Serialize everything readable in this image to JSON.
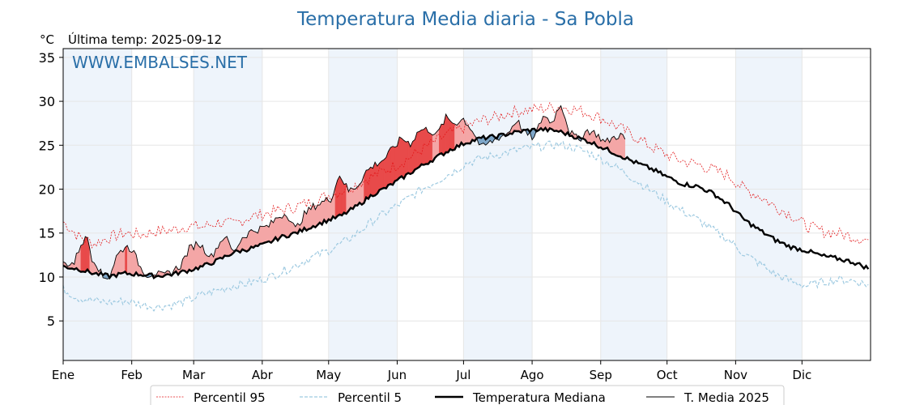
{
  "chart_data": {
    "type": "line",
    "title": "Temperatura Media diaria - Sa Pobla",
    "unit_label": "°C",
    "subtitle": "Última temp: 2025-09-12",
    "watermark": "WWW.EMBALSES.NET",
    "ylim": [
      0.5,
      36
    ],
    "yticks": [
      5,
      10,
      15,
      20,
      25,
      30,
      35
    ],
    "months": [
      "Ene",
      "Feb",
      "Mar",
      "Abr",
      "May",
      "Jun",
      "Jul",
      "Ago",
      "Sep",
      "Oct",
      "Nov",
      "Dic"
    ],
    "month_start_days": [
      1,
      32,
      60,
      91,
      121,
      152,
      182,
      213,
      244,
      274,
      305,
      335
    ],
    "xlim": [
      1,
      366
    ],
    "grid": true,
    "legend_position": "bottom-center",
    "colors": {
      "title": "#2a6fa8",
      "p95": "#e31a1c",
      "p5": "#9ecae1",
      "median": "#000000",
      "current": "#000000",
      "above_fill": "#f4a6a6",
      "above_fill_strong": "#e84a4a",
      "below_fill": "#7ea6c8",
      "below_fill_strong": "#1f5a93",
      "band": "#eef4fb"
    },
    "series": [
      {
        "name": "Percentil 95",
        "days": [
          1,
          8,
          15,
          22,
          29,
          36,
          43,
          50,
          57,
          64,
          71,
          78,
          85,
          92,
          99,
          106,
          113,
          120,
          127,
          134,
          141,
          148,
          155,
          162,
          169,
          176,
          183,
          190,
          197,
          204,
          211,
          218,
          225,
          232,
          239,
          246,
          253,
          260,
          267,
          274,
          281,
          288,
          295,
          302,
          309,
          316,
          323,
          330,
          337,
          344,
          351,
          358,
          365
        ],
        "values": [
          16.3,
          14.6,
          13.8,
          14.5,
          15.0,
          14.8,
          15.2,
          15.3,
          15.8,
          15.7,
          16.2,
          16.0,
          16.8,
          17.2,
          17.6,
          18.0,
          18.5,
          19.2,
          19.8,
          20.6,
          21.5,
          22.3,
          23.2,
          24.3,
          25.4,
          26.4,
          27.1,
          27.8,
          28.2,
          28.8,
          29.0,
          29.2,
          29.4,
          29.1,
          28.6,
          27.9,
          26.9,
          25.9,
          24.8,
          23.9,
          23.2,
          22.8,
          22.2,
          21.5,
          20.0,
          19.2,
          18.0,
          17.1,
          15.8,
          15.2,
          15.0,
          14.6,
          14.2
        ]
      },
      {
        "name": "Percentil 5",
        "days": [
          1,
          8,
          15,
          22,
          29,
          36,
          43,
          50,
          57,
          64,
          71,
          78,
          85,
          92,
          99,
          106,
          113,
          120,
          127,
          134,
          141,
          148,
          155,
          162,
          169,
          176,
          183,
          190,
          197,
          204,
          211,
          218,
          225,
          232,
          239,
          246,
          253,
          260,
          267,
          274,
          281,
          288,
          295,
          302,
          309,
          316,
          323,
          330,
          337,
          344,
          351,
          358,
          365
        ],
        "values": [
          8.6,
          7.6,
          7.3,
          7.1,
          7.3,
          6.9,
          6.6,
          6.8,
          7.3,
          8.0,
          8.5,
          9.0,
          9.3,
          9.8,
          10.5,
          11.3,
          12.2,
          12.9,
          13.8,
          15.0,
          16.4,
          17.5,
          18.6,
          19.8,
          20.8,
          21.8,
          22.9,
          23.5,
          23.9,
          24.3,
          24.7,
          24.9,
          25.1,
          24.7,
          24.1,
          23.2,
          22.2,
          21.0,
          19.8,
          18.6,
          17.5,
          16.5,
          15.3,
          14.2,
          12.6,
          11.5,
          10.3,
          9.5,
          9.0,
          9.4,
          9.7,
          9.6,
          9.1
        ]
      },
      {
        "name": "Temperatura Mediana",
        "days": [
          1,
          8,
          15,
          22,
          29,
          36,
          43,
          50,
          57,
          64,
          71,
          78,
          85,
          92,
          99,
          106,
          113,
          120,
          127,
          134,
          141,
          148,
          155,
          162,
          169,
          176,
          183,
          190,
          197,
          204,
          211,
          218,
          225,
          232,
          239,
          246,
          253,
          260,
          267,
          274,
          281,
          288,
          295,
          302,
          309,
          316,
          323,
          330,
          337,
          344,
          351,
          358,
          365
        ],
        "values": [
          11.2,
          10.9,
          10.4,
          10.1,
          10.4,
          10.3,
          10.1,
          10.3,
          10.7,
          11.2,
          11.9,
          12.8,
          13.2,
          13.7,
          14.5,
          15.0,
          15.7,
          16.4,
          17.0,
          18.1,
          19.4,
          20.3,
          21.4,
          22.5,
          23.5,
          24.5,
          25.3,
          25.8,
          26.0,
          26.4,
          26.7,
          26.8,
          26.6,
          26.0,
          25.4,
          24.6,
          23.8,
          23.0,
          22.3,
          21.4,
          20.6,
          20.3,
          19.5,
          18.2,
          16.5,
          15.3,
          14.2,
          13.4,
          13.0,
          12.4,
          12.1,
          11.7,
          11.0
        ]
      },
      {
        "name": "T. Media 2025",
        "days": [
          1,
          6,
          9,
          12,
          14,
          16,
          19,
          22,
          25,
          29,
          32,
          36,
          39,
          42,
          46,
          50,
          54,
          58,
          62,
          65,
          68,
          71,
          74,
          78,
          82,
          86,
          90,
          94,
          98,
          102,
          106,
          110,
          114,
          118,
          122,
          126,
          130,
          134,
          138,
          142,
          146,
          150,
          154,
          158,
          162,
          166,
          170,
          174,
          178,
          182,
          186,
          190,
          194,
          198,
          202,
          206,
          210,
          214,
          218,
          222,
          226,
          230,
          234,
          238,
          242,
          246,
          250,
          253,
          255
        ],
        "values": [
          11.5,
          11.6,
          13.8,
          14.5,
          12.2,
          11.6,
          9.9,
          10.1,
          12.3,
          13.5,
          13.2,
          11.1,
          10.2,
          10.5,
          10.1,
          10.6,
          11.3,
          13.2,
          13.9,
          13.1,
          12.3,
          13.6,
          14.7,
          12.8,
          14.5,
          15.2,
          15.5,
          15.8,
          16.8,
          17.3,
          15.4,
          17.1,
          18.0,
          18.5,
          18.9,
          21.7,
          19.8,
          20.4,
          22.0,
          22.8,
          23.4,
          24.6,
          25.8,
          25.2,
          26.7,
          26.8,
          26.2,
          28.1,
          27.5,
          28.0,
          26.7,
          24.7,
          25.3,
          25.9,
          26.4,
          27.9,
          26.3,
          25.8,
          28.4,
          27.6,
          29.8,
          26.5,
          25.6,
          26.7,
          26.3,
          25.3,
          25.9,
          26.2,
          25.6
        ]
      }
    ],
    "legend": [
      "Percentil 95",
      "Percentil 5",
      "Temperatura Mediana",
      "T. Media 2025"
    ]
  }
}
